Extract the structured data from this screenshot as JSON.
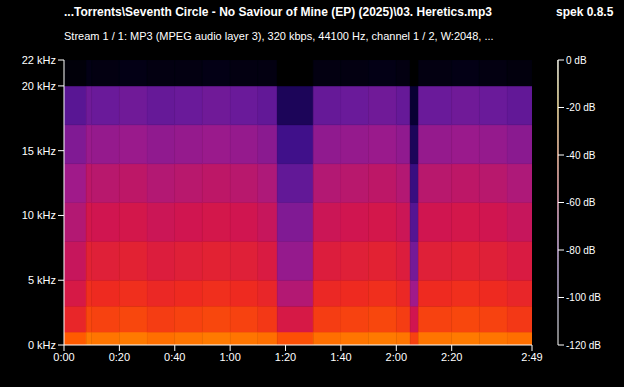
{
  "chart_data": {
    "type": "heatmap",
    "title": "...Torrents\\Seventh Circle - No Saviour of Mine (EP) (2025)\\03. Heretics.mp3",
    "annotations": [
      "spek 0.8.5"
    ],
    "subtitle": "Stream 1 / 1: MP3 (MPEG audio layer 3), 320 kbps, 44100 Hz, channel 1 / 2, W:2048, ...",
    "xlim": [
      0,
      169
    ],
    "xticks": [
      {
        "value": 0,
        "label": "0:00"
      },
      {
        "value": 20,
        "label": "0:20"
      },
      {
        "value": 40,
        "label": "0:40"
      },
      {
        "value": 60,
        "label": "1:00"
      },
      {
        "value": 80,
        "label": "1:20"
      },
      {
        "value": 100,
        "label": "1:40"
      },
      {
        "value": 120,
        "label": "2:00"
      },
      {
        "value": 140,
        "label": "2:20"
      },
      {
        "value": 169,
        "label": "2:49"
      }
    ],
    "ylim": [
      0,
      22
    ],
    "yticks": [
      {
        "value": 0,
        "label": "0 kHz"
      },
      {
        "value": 5,
        "label": "5 kHz"
      },
      {
        "value": 10,
        "label": "10 kHz"
      },
      {
        "value": 15,
        "label": "15 kHz"
      },
      {
        "value": 20,
        "label": "20 kHz"
      },
      {
        "value": 22,
        "label": "22 kHz"
      }
    ],
    "x_edges": [
      0,
      8,
      10,
      20,
      30,
      40,
      50,
      60,
      70,
      77,
      90,
      100,
      110,
      120,
      125,
      128,
      140,
      150,
      160,
      169
    ],
    "y_edges": [
      0,
      1,
      3,
      5,
      8,
      11,
      14,
      17,
      20,
      22
    ],
    "cells": [
      [
        -40,
        -34,
        -35,
        -34,
        -36,
        -35,
        -34,
        -35,
        -36,
        -42,
        -36,
        -35,
        -34,
        -35,
        -45,
        -35,
        -34,
        -35,
        -36
      ],
      [
        -52,
        -44,
        -45,
        -44,
        -46,
        -45,
        -44,
        -45,
        -47,
        -58,
        -46,
        -45,
        -44,
        -46,
        -60,
        -45,
        -44,
        -45,
        -47
      ],
      [
        -58,
        -49,
        -50,
        -49,
        -51,
        -50,
        -49,
        -50,
        -52,
        -66,
        -51,
        -50,
        -49,
        -51,
        -70,
        -50,
        -49,
        -50,
        -52
      ],
      [
        -62,
        -54,
        -55,
        -54,
        -56,
        -55,
        -54,
        -55,
        -57,
        -72,
        -56,
        -55,
        -54,
        -56,
        -78,
        -55,
        -54,
        -55,
        -57
      ],
      [
        -66,
        -59,
        -60,
        -59,
        -61,
        -60,
        -59,
        -60,
        -62,
        -76,
        -61,
        -60,
        -59,
        -61,
        -85,
        -60,
        -59,
        -60,
        -62
      ],
      [
        -70,
        -64,
        -65,
        -64,
        -66,
        -65,
        -64,
        -65,
        -67,
        -82,
        -66,
        -65,
        -64,
        -66,
        -92,
        -65,
        -64,
        -65,
        -67
      ],
      [
        -76,
        -71,
        -72,
        -71,
        -73,
        -72,
        -71,
        -72,
        -74,
        -90,
        -73,
        -72,
        -71,
        -73,
        -100,
        -72,
        -71,
        -72,
        -74
      ],
      [
        -84,
        -79,
        -80,
        -79,
        -81,
        -80,
        -79,
        -80,
        -82,
        -100,
        -81,
        -80,
        -79,
        -81,
        -108,
        -80,
        -79,
        -80,
        -82
      ],
      [
        -118,
        -115,
        -116,
        -115,
        -116,
        -116,
        -115,
        -116,
        -116,
        -120,
        -116,
        -116,
        -115,
        -116,
        -120,
        -116,
        -115,
        -116,
        -117
      ]
    ],
    "colorbar": {
      "range": [
        -120,
        0
      ],
      "ticks": [
        {
          "value": 0,
          "label": "0 dB"
        },
        {
          "value": -20,
          "label": "-20 dB"
        },
        {
          "value": -40,
          "label": "-40 dB"
        },
        {
          "value": -60,
          "label": "-60 dB"
        },
        {
          "value": -80,
          "label": "-80 dB"
        },
        {
          "value": -100,
          "label": "-100 dB"
        },
        {
          "value": -120,
          "label": "-120 dB"
        }
      ]
    }
  }
}
